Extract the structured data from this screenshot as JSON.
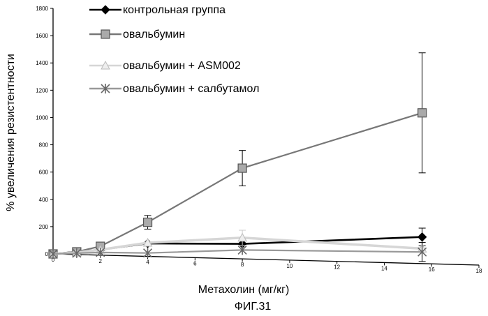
{
  "chart_data": {
    "type": "line",
    "title": "",
    "xlabel": "Метахолин (мг/кг)",
    "ylabel": "% увеличения резистентности",
    "caption": "ФИГ.31",
    "xlim": [
      0,
      18
    ],
    "ylim": [
      0,
      1800
    ],
    "xticks": [
      0,
      2,
      4,
      6,
      8,
      10,
      12,
      14,
      16,
      18
    ],
    "yticks": [
      0,
      200,
      400,
      600,
      800,
      1000,
      1200,
      1400,
      1600,
      1800
    ],
    "grid": false,
    "legend_position": "top-left",
    "series": [
      {
        "name": "контрольная группа",
        "color": "#000000",
        "marker": "diamond",
        "x": [
          0,
          1,
          2,
          4,
          8,
          15.6
        ],
        "y": [
          0,
          20,
          40,
          95,
          110,
          195
        ],
        "err": [
          0,
          0,
          0,
          0,
          0,
          65
        ]
      },
      {
        "name": "овальбумин",
        "color": "#666666",
        "marker": "square",
        "x": [
          0,
          1,
          2,
          4,
          8,
          15.6
        ],
        "y": [
          0,
          20,
          65,
          250,
          665,
          1105
        ],
        "err": [
          0,
          0,
          0,
          50,
          130,
          440
        ]
      },
      {
        "name": "овальбумин + ASM002",
        "color": "#dddddd",
        "marker": "triangle",
        "x": [
          0,
          1,
          2,
          4,
          8,
          15.6
        ],
        "y": [
          0,
          15,
          40,
          100,
          155,
          110
        ],
        "err": [
          0,
          0,
          0,
          0,
          55,
          0
        ]
      },
      {
        "name": "овальбумин + салбутамол",
        "color": "#888888",
        "marker": "star",
        "x": [
          0,
          1,
          2,
          4,
          8,
          15.6
        ],
        "y": [
          0,
          10,
          20,
          25,
          65,
          85
        ],
        "err": [
          0,
          0,
          0,
          0,
          0,
          70
        ]
      }
    ]
  }
}
